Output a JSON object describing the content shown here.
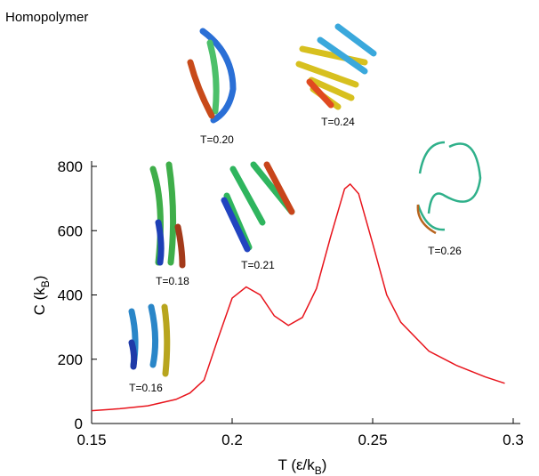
{
  "chart_data": {
    "type": "line",
    "title": "Homopolymer",
    "xlabel": [
      "T (ε/k",
      "B",
      ")"
    ],
    "ylabel": [
      "C (k",
      "B",
      ")"
    ],
    "x": [
      0.15,
      0.16,
      0.17,
      0.18,
      0.185,
      0.19,
      0.195,
      0.2,
      0.205,
      0.21,
      0.215,
      0.22,
      0.225,
      0.23,
      0.235,
      0.24,
      0.242,
      0.245,
      0.25,
      0.255,
      0.26,
      0.27,
      0.28,
      0.29,
      0.297
    ],
    "series": [
      {
        "name": "C",
        "color": "#e8141c",
        "values": [
          40,
          46,
          55,
          75,
          95,
          135,
          265,
          390,
          425,
          400,
          335,
          305,
          330,
          420,
          580,
          730,
          745,
          715,
          560,
          400,
          315,
          225,
          180,
          145,
          125
        ]
      }
    ],
    "xlim": [
      0.15,
      0.3
    ],
    "ylim": [
      0,
      800
    ],
    "xticks": [
      0.15,
      0.2,
      0.25,
      0.3
    ],
    "yticks": [
      0,
      200,
      400,
      600,
      800
    ],
    "annotations": [
      "T=0.20",
      "T=0.24",
      "T=0.18",
      "T=0.21",
      "T=0.26",
      "T=0.16"
    ]
  }
}
